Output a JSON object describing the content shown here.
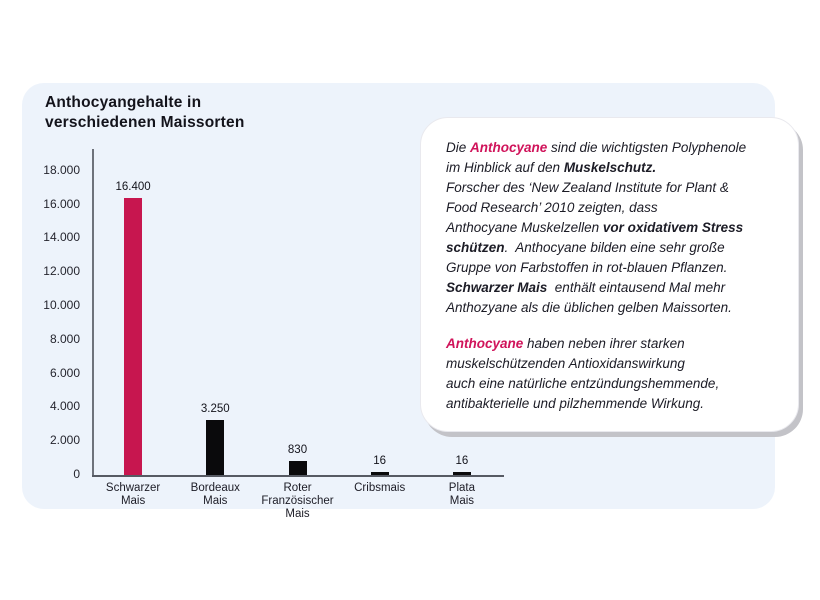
{
  "panel": {
    "bg_color": "#edf3fb",
    "title": {
      "line1": "Anthocyangehalte in",
      "line2": "verschiedenen Maissorten"
    }
  },
  "chart_data": {
    "type": "bar",
    "title": "Anthocyangehalte in verschiedenen Maissorten",
    "xlabel": "",
    "ylabel": "",
    "ylim": [
      0,
      18000
    ],
    "ytick_step": 2000,
    "ytick_labels": [
      "0",
      "2.000",
      "4.000",
      "6.000",
      "8.000",
      "10.000",
      "12.000",
      "14.000",
      "16.000",
      "18.000"
    ],
    "grid": false,
    "legend": null,
    "categories": [
      "Schwarzer\nMais",
      "Bordeaux\nMais",
      "Roter\nFranzösischer\nMais",
      "Cribsmais",
      "Plata\nMais"
    ],
    "values": [
      16400,
      3250,
      830,
      16,
      16
    ],
    "value_labels": [
      "16.400",
      "3.250",
      "830",
      "16",
      "16"
    ],
    "bar_colors": [
      "#c7164f",
      "#0a0a0c",
      "#0a0a0c",
      "#0a0a0c",
      "#0a0a0c"
    ]
  },
  "infobox": {
    "accent_color": "#d0135a",
    "paragraphs": [
      {
        "segments": [
          {
            "style": "n",
            "text": "Die "
          },
          {
            "style": "ab",
            "text": "Anthocyane"
          },
          {
            "style": "n",
            "text": " sind die wichtigsten Polyphenole\nim Hinblick auf den "
          },
          {
            "style": "b",
            "text": "Muskelschutz."
          },
          {
            "style": "n",
            "text": "\nForscher des ‘New Zealand Institute for Plant &\nFood Research’ 2010 zeigten, dass\nAnthocyane Muskelzellen "
          },
          {
            "style": "b",
            "text": "vor oxidativem Stress\nschützen"
          },
          {
            "style": "n",
            "text": ".  Anthocyane bilden eine sehr große\nGruppe von Farbstoffen in rot-blauen Pflanzen.\n"
          },
          {
            "style": "b",
            "text": "Schwarzer Mais"
          },
          {
            "style": "n",
            "text": "  enthält eintausend Mal mehr\nAnthozyane als die üblichen gelben Maissorten."
          }
        ]
      },
      {
        "segments": [
          {
            "style": "ab",
            "text": "Anthocyane"
          },
          {
            "style": "n",
            "text": " haben neben ihrer starken\nmuskelschützenden Antioxidanswirkung\nauch eine natürliche entzündungshemmende,\nantibakterielle und pilzhemmende Wirkung."
          }
        ]
      }
    ]
  }
}
